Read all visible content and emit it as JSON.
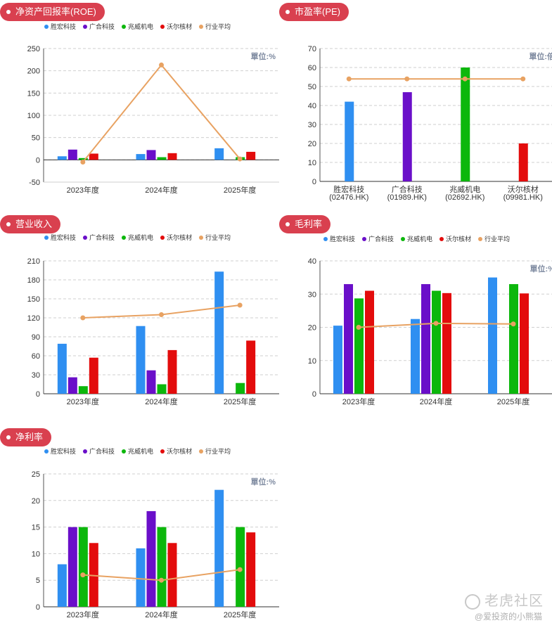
{
  "legend": {
    "series_names": [
      "胜宏科技",
      "广合科技",
      "兆威机电",
      "沃尔核材",
      "行业平均"
    ],
    "colors": [
      "#2f8ff1",
      "#6a0fc9",
      "#0cb70c",
      "#e30c0c",
      "#e8a262"
    ]
  },
  "watermark": {
    "brand": "老虎社区",
    "user": "@爱投资的小熊猫"
  },
  "chart_data": [
    {
      "title": "净资产回报率(ROE)",
      "type": "bar",
      "unit": "單位:%",
      "categories": [
        "2023年度",
        "2024年度",
        "2025年度"
      ],
      "ylim": [
        -50,
        250
      ],
      "yticks": [
        -50,
        0,
        50,
        100,
        150,
        200,
        250
      ],
      "series": [
        {
          "name": "胜宏科技",
          "values": [
            8,
            13,
            26
          ]
        },
        {
          "name": "广合科技",
          "values": [
            23,
            22,
            null
          ]
        },
        {
          "name": "兆威机电",
          "values": [
            4,
            6,
            6
          ]
        },
        {
          "name": "沃尔核材",
          "values": [
            14,
            15,
            18
          ]
        }
      ],
      "line": {
        "name": "行业平均",
        "values": [
          -5,
          213,
          2
        ]
      },
      "legend_position": "top-left",
      "grid": true
    },
    {
      "title": "市盈率(PE)",
      "type": "bar",
      "unit": "單位:倍",
      "categories": [
        "胜宏科技\n(02476.HK)",
        "广合科技\n(01989.HK)",
        "兆威机电\n(02692.HK)",
        "沃尔核材\n(09981.HK)"
      ],
      "ylim": [
        0,
        70
      ],
      "yticks": [
        0,
        10,
        20,
        30,
        40,
        50,
        60,
        70
      ],
      "values": [
        42,
        47,
        60,
        20
      ],
      "line": {
        "name": "行业平均",
        "values": [
          54,
          54,
          54,
          54
        ]
      },
      "grid": true
    },
    {
      "title": "营业收入",
      "type": "bar",
      "unit": "",
      "categories": [
        "2023年度",
        "2024年度",
        "2025年度"
      ],
      "ylim": [
        0,
        210
      ],
      "yticks": [
        0,
        30,
        60,
        90,
        120,
        150,
        180,
        210
      ],
      "series": [
        {
          "name": "胜宏科技",
          "values": [
            79,
            107,
            193
          ]
        },
        {
          "name": "广合科技",
          "values": [
            26,
            37,
            null
          ]
        },
        {
          "name": "兆威机电",
          "values": [
            12,
            15,
            17
          ]
        },
        {
          "name": "沃尔核材",
          "values": [
            57,
            69,
            84
          ]
        }
      ],
      "line": {
        "name": "行业平均",
        "values": [
          120,
          125,
          140
        ]
      },
      "legend_position": "top-left",
      "grid": true
    },
    {
      "title": "毛利率",
      "type": "bar",
      "unit": "單位:%",
      "categories": [
        "2023年度",
        "2024年度",
        "2025年度"
      ],
      "ylim": [
        0,
        40
      ],
      "yticks": [
        0,
        10,
        20,
        30,
        40
      ],
      "series": [
        {
          "name": "胜宏科技",
          "values": [
            20.5,
            22.5,
            35
          ]
        },
        {
          "name": "广合科技",
          "values": [
            33,
            33,
            null
          ]
        },
        {
          "name": "兆威机电",
          "values": [
            28.7,
            31,
            33
          ]
        },
        {
          "name": "沃尔核材",
          "values": [
            31,
            30.3,
            30.2
          ]
        }
      ],
      "line": {
        "name": "行业平均",
        "values": [
          20,
          21.2,
          21
        ]
      },
      "legend_position": "top-left",
      "grid": true
    },
    {
      "title": "净利率",
      "type": "bar",
      "unit": "單位:%",
      "categories": [
        "2023年度",
        "2024年度",
        "2025年度"
      ],
      "ylim": [
        0,
        25
      ],
      "yticks": [
        0,
        5,
        10,
        15,
        20,
        25
      ],
      "series": [
        {
          "name": "胜宏科技",
          "values": [
            8,
            11,
            22
          ]
        },
        {
          "name": "广合科技",
          "values": [
            15,
            18,
            null
          ]
        },
        {
          "name": "兆威机电",
          "values": [
            15,
            15,
            15
          ]
        },
        {
          "name": "沃尔核材",
          "values": [
            12,
            12,
            14
          ]
        }
      ],
      "line": {
        "name": "行业平均",
        "values": [
          6,
          5,
          7
        ]
      },
      "legend_position": "top-left",
      "grid": true
    }
  ]
}
